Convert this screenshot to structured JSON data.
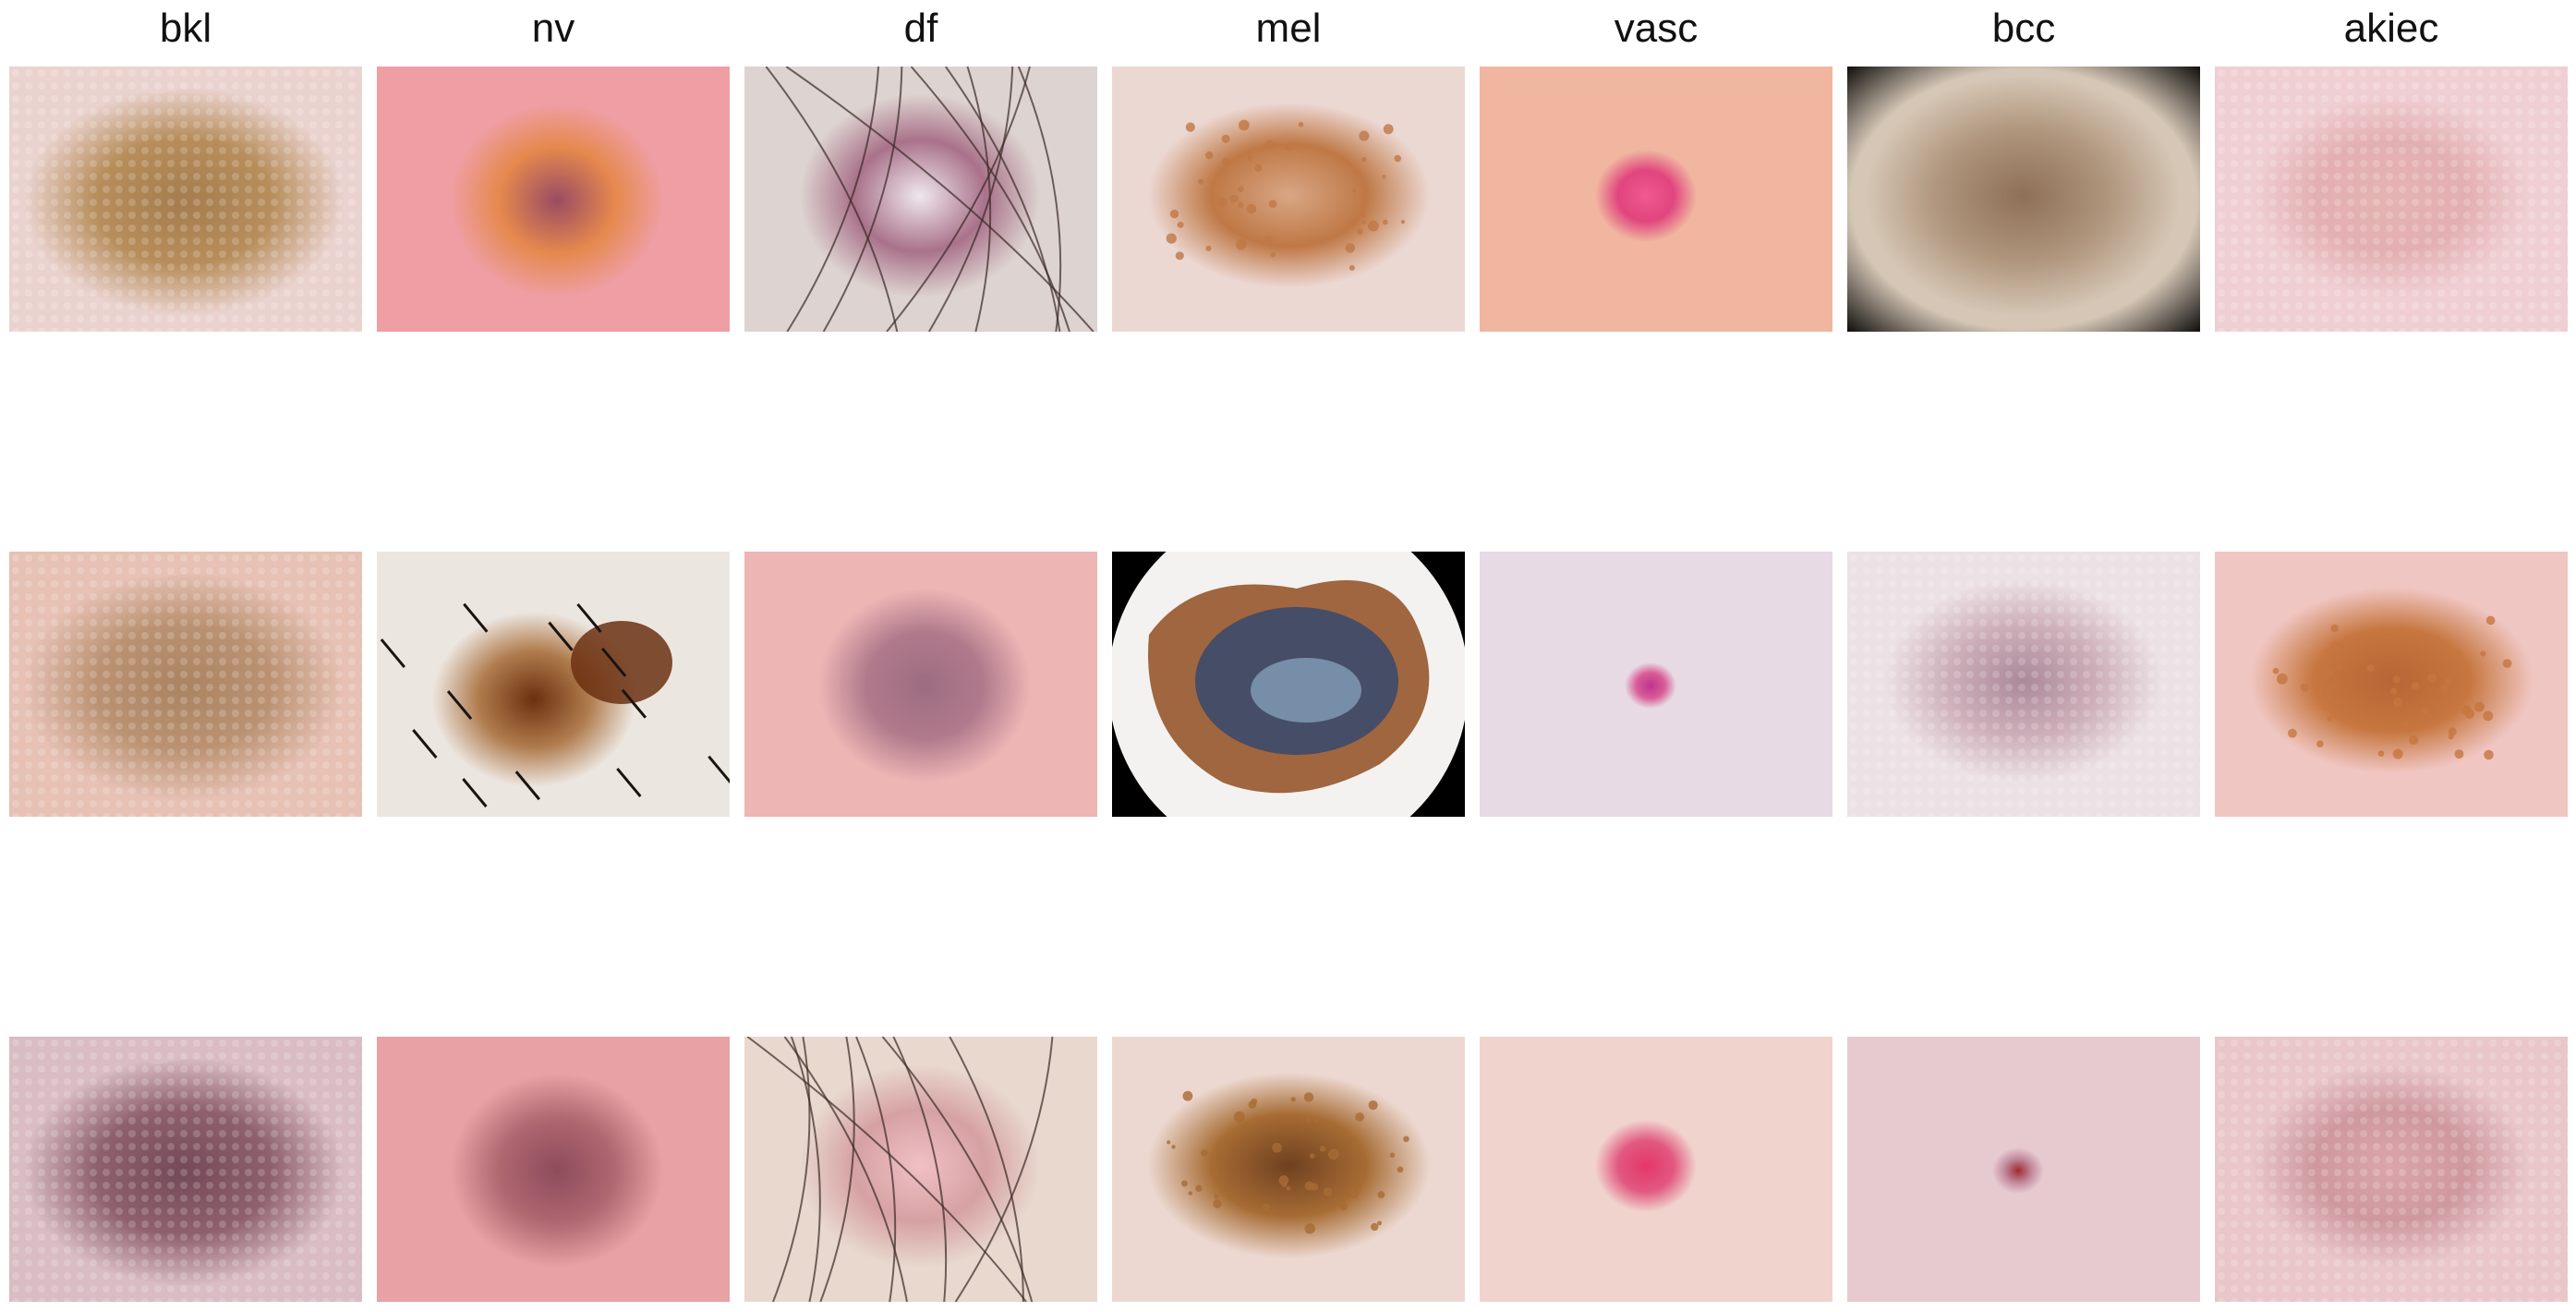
{
  "columns": [
    {
      "label": "bkl"
    },
    {
      "label": "nv"
    },
    {
      "label": "df"
    },
    {
      "label": "mel"
    },
    {
      "label": "vasc"
    },
    {
      "label": "bcc"
    },
    {
      "label": "akiec"
    }
  ],
  "tiles": [
    {
      "skin": "#ead3cf",
      "lesion": "#b48a55",
      "core": "#a17847",
      "style": "patch"
    },
    {
      "skin": "#ef9ea3",
      "lesion": "#e5894d",
      "core": "#9b4b63",
      "style": "blob"
    },
    {
      "skin": "#ddd3d0",
      "lesion": "#a9728a",
      "core": "#efe7ee",
      "style": "ring-hair"
    },
    {
      "skin": "#ecd8d3",
      "lesion": "#bf7845",
      "core": "#d8a685",
      "style": "patch-dots"
    },
    {
      "skin": "#f0b69f",
      "lesion": "#e1457e",
      "core": "#f0598f",
      "style": "small"
    },
    {
      "skin": "#d5c6b5",
      "lesion": "#a68a6f",
      "core": "#7c5a40",
      "style": "patch-vignette"
    },
    {
      "skin": "#efcfd3",
      "lesion": "#dea2a2",
      "core": "#e0a6a3",
      "style": "faint"
    },
    {
      "skin": "#e6c1b4",
      "lesion": "#b8906f",
      "core": "#a7805d",
      "style": "patch"
    },
    {
      "skin": "#ece6e0",
      "lesion": "#b07c4d",
      "core": "#6b3010",
      "style": "nv-hair"
    },
    {
      "skin": "#edb5b4",
      "lesion": "#b07a8c",
      "core": "#9d6c80",
      "style": "blob"
    },
    {
      "skin": "#111111",
      "lesion": "#a0663f",
      "core": "#3c4a6a",
      "style": "mel-circle"
    },
    {
      "skin": "#e7dae4",
      "lesion": "#d95c97",
      "core": "#c0348e",
      "style": "tiny"
    },
    {
      "skin": "#ece1e4",
      "lesion": "#c09aa8",
      "core": "#8e6478",
      "style": "faint"
    },
    {
      "skin": "#f0c6c2",
      "lesion": "#c6763e",
      "core": "#b86536",
      "style": "patch-dots"
    },
    {
      "skin": "#d9bcc4",
      "lesion": "#8a5c68",
      "core": "#6f4352",
      "style": "patch"
    },
    {
      "skin": "#e8a1a4",
      "lesion": "#b06871",
      "core": "#8d4b5c",
      "style": "blob"
    },
    {
      "skin": "#e8d8cd",
      "lesion": "#d6a1a2",
      "core": "#f0c0c6",
      "style": "ring-hair"
    },
    {
      "skin": "#ecd8d0",
      "lesion": "#a76c34",
      "core": "#6f4020",
      "style": "patch-dots"
    },
    {
      "skin": "#f0d3cd",
      "lesion": "#e25880",
      "core": "#e4376a",
      "style": "small"
    },
    {
      "skin": "#e7cad0",
      "lesion": "#c28da0",
      "core": "#a12a2f",
      "style": "tiny"
    },
    {
      "skin": "#e8c6ca",
      "lesion": "#c3858b",
      "core": "#d5989d",
      "style": "faint"
    }
  ]
}
